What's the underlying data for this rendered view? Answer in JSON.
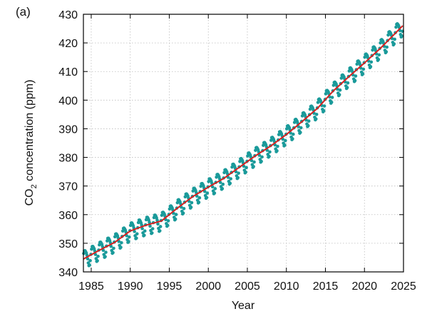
{
  "panel_label": "(a)",
  "chart_data": {
    "type": "line",
    "xlabel": "Year",
    "ylabel_main": "CO",
    "ylabel_sub": "2",
    "ylabel_rest": " concentration (ppm)",
    "xlim": [
      1984,
      2025
    ],
    "ylim": [
      340,
      430
    ],
    "x_ticks": [
      1985,
      1990,
      1995,
      2000,
      2005,
      2010,
      2015,
      2020,
      2025
    ],
    "y_ticks": [
      340,
      350,
      360,
      370,
      380,
      390,
      400,
      410,
      420,
      430
    ],
    "grid": true,
    "colors": {
      "monthly": "#1a9a9a",
      "trend": "#d62020"
    },
    "series": [
      {
        "kind": "monthly-points",
        "seasonal_amplitude_ppm": 3.0,
        "x": [
          1984.0,
          1986.0,
          1988.0,
          1990.0,
          1992.0,
          1994.0,
          1996.0,
          1998.0,
          2000.0,
          2002.0,
          2004.0,
          2006.0,
          2008.0,
          2010.0,
          2012.0,
          2014.0,
          2016.0,
          2018.0,
          2020.0,
          2022.0,
          2024.0,
          2024.9
        ],
        "values": [
          344.5,
          347.5,
          350.3,
          354.3,
          356.3,
          357.8,
          362.2,
          366.3,
          369.6,
          372.7,
          376.6,
          380.5,
          384.0,
          388.0,
          392.5,
          397.2,
          403.2,
          408.2,
          413.0,
          418.0,
          423.5,
          426.0
        ]
      },
      {
        "kind": "trend-line",
        "x": [
          1984.0,
          1986.0,
          1988.0,
          1990.0,
          1992.0,
          1994.0,
          1996.0,
          1998.0,
          2000.0,
          2002.0,
          2004.0,
          2006.0,
          2008.0,
          2010.0,
          2012.0,
          2014.0,
          2016.0,
          2018.0,
          2020.0,
          2022.0,
          2024.0,
          2024.9
        ],
        "values": [
          344.5,
          347.5,
          350.3,
          354.3,
          356.3,
          357.8,
          362.2,
          366.3,
          369.6,
          372.7,
          376.6,
          380.5,
          384.0,
          388.0,
          392.5,
          397.2,
          403.2,
          408.2,
          413.0,
          418.0,
          423.5,
          426.0
        ]
      }
    ]
  }
}
